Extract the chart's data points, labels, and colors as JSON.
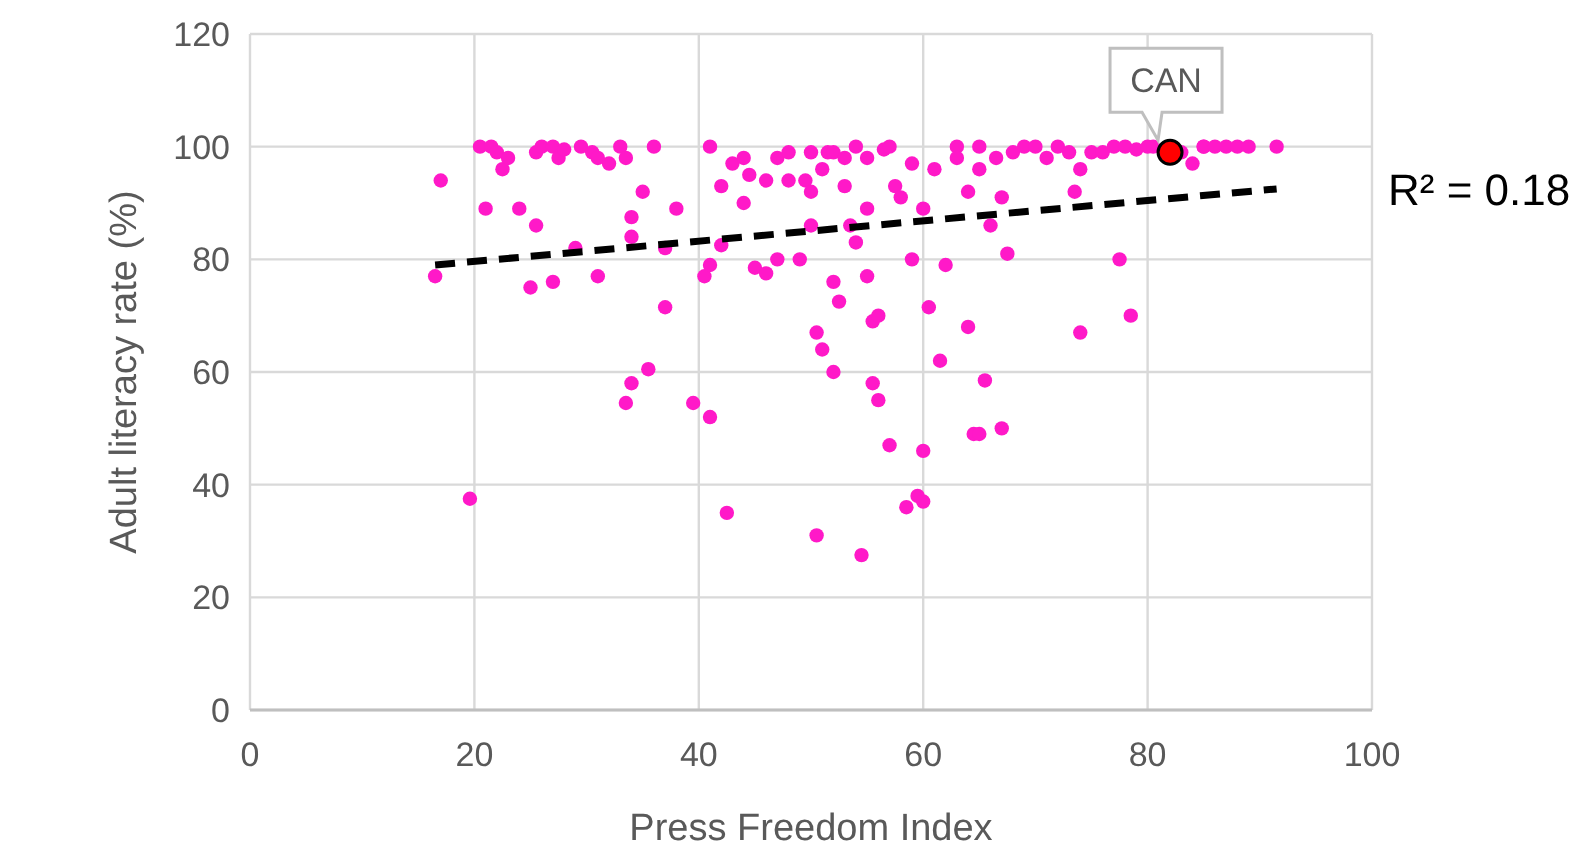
{
  "chart_data": {
    "type": "scatter",
    "xlabel": "Press Freedom Index",
    "ylabel": "Adult literacy rate (%)",
    "xlim": [
      0,
      100
    ],
    "xticks": [
      0,
      20,
      40,
      60,
      80,
      100
    ],
    "ylim": [
      0,
      120
    ],
    "yticks": [
      0,
      20,
      40,
      60,
      80,
      100,
      120
    ],
    "grid": true,
    "marker": "circle",
    "annotations": [
      "R² = 0.18"
    ],
    "series": [
      {
        "color": "#ff19c8",
        "x": [
          16.5,
          17,
          19.6,
          20.5,
          21,
          21.5,
          22,
          22.5,
          23,
          24,
          25,
          25.5,
          25.5,
          26,
          27,
          27,
          27.5,
          28,
          29,
          29.5,
          30.5,
          31,
          31,
          32,
          33,
          33.5,
          33.5,
          34,
          34,
          34,
          35,
          35.5,
          36,
          37,
          37,
          38,
          39.5,
          40.5,
          41,
          41,
          41,
          42,
          42.5,
          42,
          43,
          44,
          44.5,
          44,
          45,
          46,
          46,
          47,
          47,
          48,
          48,
          49,
          49.5,
          50,
          50,
          50,
          50.5,
          50.5,
          51,
          51,
          51.5,
          52,
          52,
          52.5,
          52,
          53,
          53,
          53.5,
          54,
          54,
          54.5,
          55,
          55,
          55.5,
          55,
          55.5,
          56,
          56,
          56.5,
          57,
          57,
          57.5,
          58,
          58.5,
          59,
          59,
          59.5,
          60,
          60,
          60,
          60.5,
          61,
          61.5,
          62,
          63,
          63,
          64,
          64,
          64.5,
          65,
          65,
          65,
          65.5,
          66,
          66.5,
          67,
          67,
          67.5,
          68,
          69,
          70,
          71,
          72,
          73,
          73.5,
          74,
          74,
          75,
          76,
          77,
          77.5,
          78,
          78.5,
          79,
          80,
          80.5,
          83,
          84,
          85,
          85,
          86,
          87,
          88,
          89,
          91.5
        ],
        "values": [
          77,
          94,
          37.5,
          100,
          89,
          100,
          99,
          96,
          98,
          89,
          75,
          86,
          99,
          100,
          100,
          76,
          98,
          99.5,
          82,
          100,
          99,
          77,
          98,
          97,
          100,
          98,
          54.5,
          87.5,
          58,
          84,
          92,
          60.5,
          100,
          71.5,
          82,
          89,
          54.5,
          77,
          100,
          79,
          52,
          82.5,
          35,
          93,
          97,
          98,
          95,
          90,
          78.5,
          77.5,
          94,
          98,
          80,
          94,
          99,
          80,
          94,
          99,
          92,
          86,
          31,
          67,
          64,
          96,
          99,
          99,
          76,
          72.5,
          60,
          93,
          98,
          86,
          100,
          83,
          27.5,
          77,
          89,
          58,
          98,
          69,
          55,
          70,
          99.5,
          47,
          100,
          93,
          91,
          36,
          97,
          80,
          38,
          37,
          46,
          89,
          71.5,
          96,
          62,
          79,
          100,
          98,
          92,
          68,
          49,
          49,
          100,
          96,
          58.5,
          86,
          98,
          50,
          91,
          81,
          99,
          100,
          100,
          98,
          100,
          99,
          92,
          67,
          96,
          99,
          99,
          100,
          80,
          100,
          70,
          99.5,
          100,
          100,
          99,
          97,
          100,
          100,
          100,
          100,
          100,
          100,
          100
        ]
      },
      {
        "name": "CAN",
        "color": "#ff0000",
        "x": [
          82
        ],
        "values": [
          99
        ]
      },
      {
        "type": "line",
        "color": "#000000",
        "line_style": "dashed",
        "marker": "none",
        "x": [
          16.5,
          91.5
        ],
        "values": [
          79,
          92.5
        ]
      }
    ]
  }
}
